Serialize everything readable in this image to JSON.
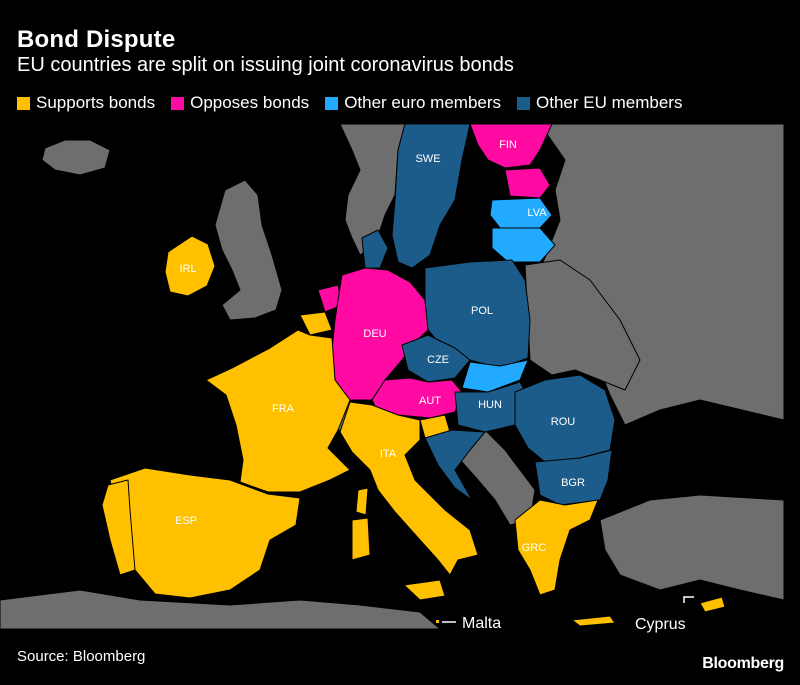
{
  "header": {
    "title": "Bond Dispute",
    "subtitle": "EU countries are split on issuing joint coronavirus bonds"
  },
  "legend": [
    {
      "label": "Supports bonds",
      "color": "#ffc000"
    },
    {
      "label": "Opposes bonds",
      "color": "#ff0aa2"
    },
    {
      "label": "Other euro members",
      "color": "#21aaff"
    },
    {
      "label": "Other EU members",
      "color": "#1c5c8a"
    }
  ],
  "colors": {
    "background": "#000000",
    "non_eu": "#6e6e6e",
    "borders": "#000000"
  },
  "countries": {
    "swe": {
      "label": "SWE",
      "category": "Other EU members"
    },
    "fin": {
      "label": "FIN",
      "category": "Opposes bonds"
    },
    "lva": {
      "label": "LVA",
      "category": "Other euro members"
    },
    "irl": {
      "label": "IRL",
      "category": "Supports bonds"
    },
    "deu": {
      "label": "DEU",
      "category": "Opposes bonds"
    },
    "pol": {
      "label": "POL",
      "category": "Other EU members"
    },
    "cze": {
      "label": "CZE",
      "category": "Other EU members"
    },
    "aut": {
      "label": "AUT",
      "category": "Opposes bonds"
    },
    "hun": {
      "label": "HUN",
      "category": "Other EU members"
    },
    "rou": {
      "label": "ROU",
      "category": "Other EU members"
    },
    "fra": {
      "label": "FRA",
      "category": "Supports bonds"
    },
    "ita": {
      "label": "ITA",
      "category": "Supports bonds"
    },
    "bgr": {
      "label": "BGR",
      "category": "Other EU members"
    },
    "esp": {
      "label": "ESP",
      "category": "Supports bonds"
    },
    "grc": {
      "label": "GRC",
      "category": "Supports bonds"
    }
  },
  "callouts": {
    "malta": "Malta",
    "cyprus": "Cyprus"
  },
  "footer": {
    "source": "Source: Bloomberg",
    "logo": "Bloomberg"
  }
}
